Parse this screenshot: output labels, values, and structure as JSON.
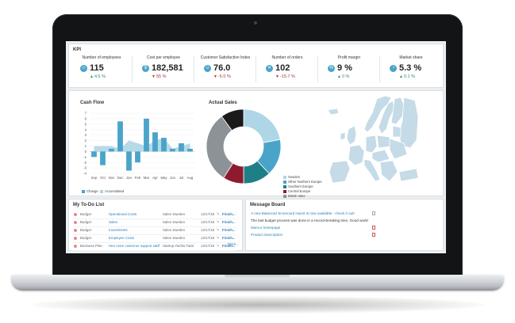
{
  "kpi": {
    "title": "KPI",
    "items": [
      {
        "label": "Number of employees",
        "value": "115",
        "change": "4.5 %",
        "direction": "up",
        "icon": "people-icon"
      },
      {
        "label": "Cost per employee",
        "value": "182,581",
        "change": "55 %",
        "direction": "down",
        "icon": "dollar-icon"
      },
      {
        "label": "Customer Satisfaction Index",
        "value": "76.0",
        "change": "-5.0 %",
        "direction": "down",
        "icon": "smiley-icon"
      },
      {
        "label": "Number of orders",
        "value": "102",
        "change": "-15.7 %",
        "direction": "down",
        "icon": "cart-icon"
      },
      {
        "label": "Profit margin",
        "value": "9 %",
        "change": "0 %",
        "direction": "up",
        "icon": "percent-icon"
      },
      {
        "label": "Market share",
        "value": "5.3 %",
        "change": "0.1 %",
        "direction": "up",
        "icon": "pie-icon"
      }
    ]
  },
  "cash_flow": {
    "title": "Cash Flow",
    "legend_change": "Change",
    "legend_accumulated": "Accumulated"
  },
  "actual_sales": {
    "title": "Actual Sales"
  },
  "chart_data": [
    {
      "type": "bar",
      "title": "Cash Flow",
      "categories": [
        "Sep",
        "Oct",
        "Nov",
        "Dec",
        "Jan",
        "Feb",
        "Mar",
        "Apr",
        "May",
        "Jun",
        "Jul",
        "Aug"
      ],
      "ylim": [
        -4,
        7
      ],
      "yticks": [
        7,
        6,
        5,
        4,
        3,
        2,
        1,
        0,
        -1,
        -2,
        -3,
        -4
      ],
      "grid": true,
      "legend_position": "bottom-left",
      "series": [
        {
          "name": "Change",
          "type": "bar",
          "values": [
            -1.0,
            -2.5,
            0.5,
            5.5,
            -3.5,
            -2.0,
            6.0,
            3.5,
            2.5,
            0.5,
            1.5,
            0.5
          ]
        },
        {
          "name": "Accumulated",
          "type": "area",
          "values": [
            1.0,
            1.0,
            1.0,
            0.5,
            2.0,
            1.5,
            1.0,
            2.0,
            2.5,
            0.5,
            1.0,
            1.5
          ]
        }
      ]
    },
    {
      "type": "pie",
      "title": "Actual Sales",
      "legend_position": "right",
      "labels": [
        "Sweden",
        "Other Northern Europe",
        "Southern Europe",
        "Central Europe",
        "British Isles",
        "Other Europe"
      ],
      "values": [
        22,
        16,
        12,
        9,
        31,
        10
      ]
    }
  ],
  "todo": {
    "title": "My To-Do List",
    "rows": [
      {
        "type": "Budget",
        "item": "Operational Costs",
        "unit": "Sales Sweden",
        "date": "12/17/18",
        "action": "Finish..."
      },
      {
        "type": "Budget",
        "item": "Sales",
        "unit": "Sales Sweden",
        "date": "12/17/18",
        "action": "Finish..."
      },
      {
        "type": "Budget",
        "item": "Investments",
        "unit": "Sales Sweden",
        "date": "12/17/18",
        "action": "Finish..."
      },
      {
        "type": "Budget",
        "item": "Employee Costs",
        "unit": "Sales Sweden",
        "date": "12/17/18",
        "action": "Finish..."
      },
      {
        "type": "Business Plan",
        "item": "Hire more customer support staff",
        "unit": "Startup Yachts Total",
        "date": "12/17/18",
        "action": "Finish..."
      }
    ],
    "more": "More..."
  },
  "messages": {
    "title": "Message Board",
    "rows": [
      {
        "text": "A new Balanced Scorecard report is now available - check it out!",
        "style": "link",
        "icon": "document-icon"
      },
      {
        "text": "The last budget process was done in a record-breaking time. Good work!",
        "style": "text",
        "icon": ""
      },
      {
        "text": "Marcur homepage",
        "style": "link",
        "icon": "pdf-icon"
      },
      {
        "text": "Product Description",
        "style": "link",
        "icon": "pdf-icon"
      }
    ]
  },
  "colors": {
    "accent_blue": "#4aa4c9",
    "light_blue": "#aed6e6",
    "teal": "#1f7f86",
    "dark_red": "#8e1a2f",
    "grey": "#8c9297",
    "black": "#1a1a1a",
    "map_fill": "#c5dbe7"
  }
}
